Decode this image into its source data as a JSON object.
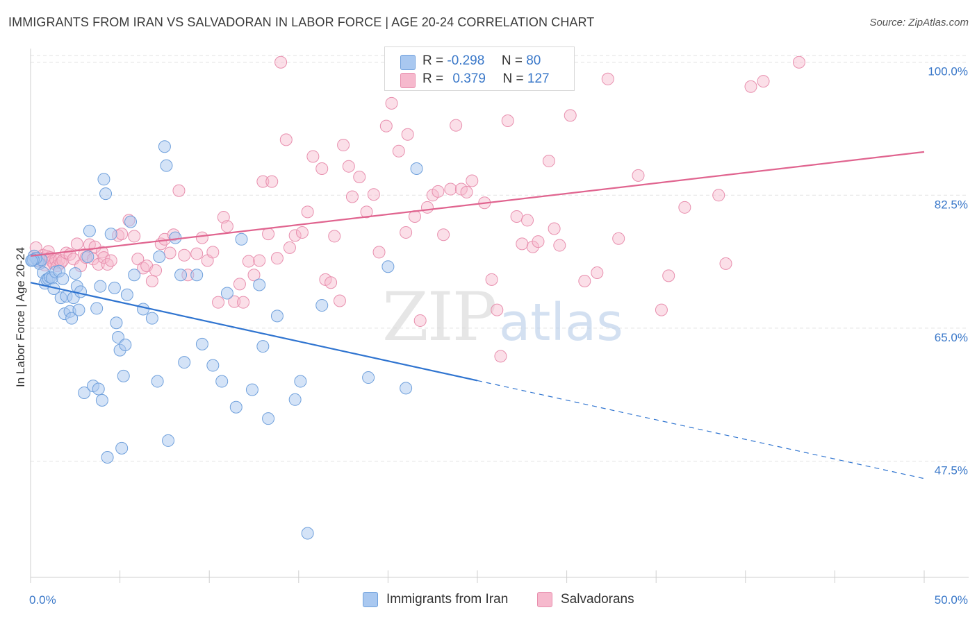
{
  "title": "IMMIGRANTS FROM IRAN VS SALVADORAN IN LABOR FORCE | AGE 20-24 CORRELATION CHART",
  "source": "Source: ZipAtlas.com",
  "watermark": {
    "bold": "ZIP",
    "light": "atlas"
  },
  "colors": {
    "blue_fill": "#a9c8f0",
    "blue_stroke": "#6fa0dc",
    "blue_line": "#2f74d0",
    "pink_fill": "#f6b9cd",
    "pink_stroke": "#e88fae",
    "pink_line": "#e0648f",
    "tick_label": "#3a78c9",
    "grid": "#e2e2e2"
  },
  "legend": {
    "series1": {
      "r_label": "R =",
      "r_value": "-0.298",
      "n_label": "N =",
      "n_value": "80"
    },
    "series2": {
      "r_label": "R =",
      "r_value": "0.379",
      "n_label": "N =",
      "n_value": "127"
    }
  },
  "bottom_legend": [
    "Immigrants from Iran",
    "Salvadorans"
  ],
  "chart_data": {
    "type": "scatter",
    "title": "IMMIGRANTS FROM IRAN VS SALVADORAN IN LABOR FORCE | AGE 20-24 CORRELATION CHART",
    "xlabel": "",
    "ylabel": "In Labor Force | Age 20-24",
    "xlim": [
      0,
      50
    ],
    "ylim": [
      32.2,
      101.8
    ],
    "x_tick_labels": [
      "0.0%",
      "50.0%"
    ],
    "y_ticks": [
      47.5,
      65.0,
      82.5,
      100.0
    ],
    "y_tick_labels": [
      "47.5%",
      "65.0%",
      "82.5%",
      "100.0%"
    ],
    "grid": true,
    "legend_position": "top-center",
    "series": [
      {
        "name": "Immigrants from Iran",
        "color": "#a9c8f0",
        "R": -0.298,
        "N": 80,
        "trend": {
          "x0": 0,
          "y0": 71.0,
          "x1": 25,
          "y1": 58.1,
          "dashed_to_x": 50,
          "dashed_to_y": 45.2
        },
        "points": [
          [
            0.1,
            73.9
          ],
          [
            0.2,
            74.5
          ],
          [
            0.4,
            73.8
          ],
          [
            0.5,
            73.5
          ],
          [
            0.6,
            74.0
          ],
          [
            0.7,
            72.3
          ],
          [
            0.8,
            70.9
          ],
          [
            0.9,
            71.4
          ],
          [
            1.0,
            71.5
          ],
          [
            1.1,
            71.7
          ],
          [
            1.2,
            71.6
          ],
          [
            1.3,
            70.2
          ],
          [
            1.4,
            72.4
          ],
          [
            1.6,
            72.5
          ],
          [
            1.7,
            69.0
          ],
          [
            1.8,
            71.5
          ],
          [
            1.9,
            66.9
          ],
          [
            2.0,
            69.2
          ],
          [
            2.2,
            67.2
          ],
          [
            2.3,
            66.3
          ],
          [
            2.4,
            69.0
          ],
          [
            2.5,
            72.2
          ],
          [
            2.6,
            70.5
          ],
          [
            2.7,
            67.4
          ],
          [
            2.8,
            69.8
          ],
          [
            3.0,
            56.5
          ],
          [
            3.2,
            74.4
          ],
          [
            3.3,
            77.8
          ],
          [
            3.5,
            57.4
          ],
          [
            3.7,
            67.6
          ],
          [
            3.8,
            57.0
          ],
          [
            3.9,
            70.5
          ],
          [
            4.0,
            55.5
          ],
          [
            4.1,
            84.6
          ],
          [
            4.2,
            82.7
          ],
          [
            4.3,
            48.0
          ],
          [
            4.5,
            77.4
          ],
          [
            4.7,
            70.3
          ],
          [
            4.8,
            65.7
          ],
          [
            4.9,
            63.8
          ],
          [
            5.0,
            62.1
          ],
          [
            5.1,
            49.2
          ],
          [
            5.2,
            58.7
          ],
          [
            5.3,
            62.8
          ],
          [
            5.4,
            69.4
          ],
          [
            5.6,
            79.0
          ],
          [
            5.8,
            72.0
          ],
          [
            6.3,
            67.5
          ],
          [
            6.8,
            66.3
          ],
          [
            7.1,
            58.0
          ],
          [
            7.2,
            74.4
          ],
          [
            7.5,
            88.9
          ],
          [
            7.6,
            86.4
          ],
          [
            7.7,
            50.2
          ],
          [
            8.1,
            76.9
          ],
          [
            8.4,
            72.0
          ],
          [
            8.6,
            60.5
          ],
          [
            9.3,
            72.0
          ],
          [
            9.6,
            62.9
          ],
          [
            10.2,
            60.1
          ],
          [
            10.7,
            58.0
          ],
          [
            11.0,
            69.6
          ],
          [
            11.5,
            54.6
          ],
          [
            11.8,
            76.7
          ],
          [
            12.4,
            56.9
          ],
          [
            12.8,
            70.7
          ],
          [
            13.0,
            62.6
          ],
          [
            13.3,
            53.1
          ],
          [
            13.8,
            66.6
          ],
          [
            14.8,
            55.6
          ],
          [
            15.1,
            58.0
          ],
          [
            15.5,
            38.0
          ],
          [
            16.3,
            68.0
          ],
          [
            18.9,
            58.5
          ],
          [
            20.0,
            73.1
          ],
          [
            21.0,
            57.1
          ],
          [
            21.6,
            86.0
          ],
          [
            0.3,
            74.2
          ],
          [
            0.15,
            74.0
          ],
          [
            0.05,
            73.9
          ]
        ]
      },
      {
        "name": "Salvadorans",
        "color": "#f6b9cd",
        "R": 0.379,
        "N": 127,
        "trend": {
          "x0": 0,
          "y0": 74.5,
          "x1": 50,
          "y1": 88.2
        },
        "points": [
          [
            0.2,
            74.5
          ],
          [
            0.3,
            75.6
          ],
          [
            0.4,
            74.1
          ],
          [
            0.5,
            73.8
          ],
          [
            0.6,
            74.2
          ],
          [
            0.7,
            74.6
          ],
          [
            0.8,
            73.3
          ],
          [
            0.9,
            74.5
          ],
          [
            1.0,
            75.1
          ],
          [
            1.1,
            74.3
          ],
          [
            1.2,
            73.8
          ],
          [
            1.3,
            73.5
          ],
          [
            1.4,
            74.0
          ],
          [
            1.5,
            73.2
          ],
          [
            1.6,
            74.0
          ],
          [
            1.7,
            73.6
          ],
          [
            1.8,
            73.9
          ],
          [
            2.0,
            74.9
          ],
          [
            2.2,
            74.7
          ],
          [
            2.4,
            74.1
          ],
          [
            2.6,
            76.1
          ],
          [
            2.8,
            73.2
          ],
          [
            3.0,
            74.7
          ],
          [
            3.1,
            74.3
          ],
          [
            3.3,
            76.0
          ],
          [
            3.5,
            74.1
          ],
          [
            3.6,
            75.7
          ],
          [
            3.8,
            73.4
          ],
          [
            4.0,
            75.0
          ],
          [
            4.1,
            74.3
          ],
          [
            4.3,
            73.4
          ],
          [
            4.5,
            73.9
          ],
          [
            4.9,
            77.2
          ],
          [
            5.1,
            77.4
          ],
          [
            5.5,
            79.2
          ],
          [
            5.8,
            77.1
          ],
          [
            6.0,
            74.1
          ],
          [
            6.3,
            72.9
          ],
          [
            6.5,
            73.2
          ],
          [
            6.8,
            71.2
          ],
          [
            7.0,
            72.6
          ],
          [
            7.3,
            76.1
          ],
          [
            7.5,
            76.7
          ],
          [
            7.8,
            74.9
          ],
          [
            8.0,
            77.3
          ],
          [
            8.3,
            83.1
          ],
          [
            8.6,
            74.6
          ],
          [
            8.8,
            72.0
          ],
          [
            9.3,
            74.8
          ],
          [
            9.6,
            76.9
          ],
          [
            9.9,
            73.9
          ],
          [
            10.2,
            75.0
          ],
          [
            10.5,
            68.4
          ],
          [
            10.8,
            79.6
          ],
          [
            11.0,
            78.4
          ],
          [
            11.4,
            68.5
          ],
          [
            11.7,
            70.8
          ],
          [
            11.9,
            68.4
          ],
          [
            12.2,
            73.8
          ],
          [
            12.5,
            72.0
          ],
          [
            12.8,
            73.9
          ],
          [
            13.0,
            84.3
          ],
          [
            13.3,
            77.4
          ],
          [
            13.5,
            84.3
          ],
          [
            13.8,
            74.2
          ],
          [
            14.0,
            100.0
          ],
          [
            14.3,
            89.8
          ],
          [
            14.5,
            75.6
          ],
          [
            14.8,
            77.2
          ],
          [
            15.2,
            77.6
          ],
          [
            15.5,
            80.3
          ],
          [
            15.8,
            87.6
          ],
          [
            16.3,
            86.0
          ],
          [
            16.5,
            71.4
          ],
          [
            16.8,
            71.0
          ],
          [
            17.0,
            77.1
          ],
          [
            17.3,
            68.6
          ],
          [
            17.5,
            89.1
          ],
          [
            17.8,
            86.3
          ],
          [
            18.0,
            82.3
          ],
          [
            18.4,
            84.9
          ],
          [
            18.8,
            80.3
          ],
          [
            19.2,
            82.6
          ],
          [
            19.5,
            75.0
          ],
          [
            19.9,
            91.6
          ],
          [
            20.2,
            94.6
          ],
          [
            20.6,
            88.3
          ],
          [
            21.0,
            77.6
          ],
          [
            21.1,
            90.5
          ],
          [
            21.5,
            79.7
          ],
          [
            21.8,
            66.0
          ],
          [
            22.2,
            80.9
          ],
          [
            22.5,
            82.5
          ],
          [
            22.8,
            83.0
          ],
          [
            23.1,
            77.3
          ],
          [
            23.5,
            83.3
          ],
          [
            23.8,
            91.7
          ],
          [
            24.1,
            83.3
          ],
          [
            24.4,
            82.9
          ],
          [
            24.7,
            84.4
          ],
          [
            25.4,
            81.5
          ],
          [
            25.8,
            71.4
          ],
          [
            26.1,
            67.4
          ],
          [
            26.3,
            61.3
          ],
          [
            26.7,
            92.3
          ],
          [
            27.2,
            79.7
          ],
          [
            27.5,
            76.1
          ],
          [
            27.8,
            79.2
          ],
          [
            28.1,
            75.7
          ],
          [
            28.4,
            76.4
          ],
          [
            29.0,
            87.0
          ],
          [
            29.3,
            78.1
          ],
          [
            29.6,
            75.9
          ],
          [
            30.2,
            93.0
          ],
          [
            31.0,
            71.2
          ],
          [
            31.7,
            72.3
          ],
          [
            32.3,
            97.8
          ],
          [
            32.9,
            76.8
          ],
          [
            34.0,
            85.1
          ],
          [
            35.3,
            67.4
          ],
          [
            35.7,
            71.9
          ],
          [
            36.6,
            80.9
          ],
          [
            38.5,
            82.5
          ],
          [
            38.9,
            73.5
          ],
          [
            40.3,
            96.8
          ],
          [
            41.0,
            97.5
          ],
          [
            43.0,
            100.0
          ]
        ]
      }
    ]
  }
}
